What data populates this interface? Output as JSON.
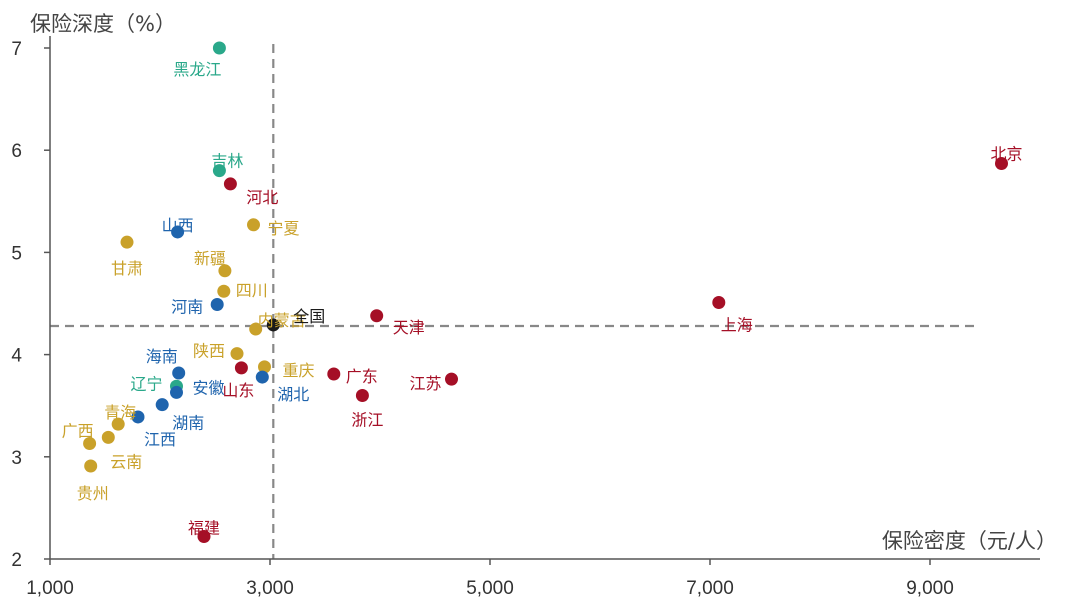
{
  "chart_data": {
    "type": "scatter",
    "title": "",
    "xlabel": "保险密度（元/人）",
    "ylabel": "保险深度（%）",
    "xlim": [
      1000,
      10000
    ],
    "ylim": [
      2,
      7
    ],
    "xticks": [
      1000,
      3000,
      5000,
      7000,
      9000
    ],
    "xtick_labels": [
      "1,000",
      "3,000",
      "5,000",
      "7,000",
      "9,000"
    ],
    "yticks": [
      2,
      3,
      4,
      5,
      6,
      7
    ],
    "ytick_labels": [
      "2",
      "3",
      "4",
      "5",
      "6",
      "7"
    ],
    "reference_lines": {
      "x": 3030,
      "y": 4.28
    },
    "grid": false,
    "legend": "none",
    "colors": {
      "teal": "#2aa88a",
      "red": "#a50f26",
      "gold": "#c9a12a",
      "blue": "#1f64ad",
      "black": "#1a1a1a"
    },
    "points": [
      {
        "label": "黑龙江",
        "x": 2540,
        "y": 7.0,
        "color": "teal",
        "dx": -22,
        "dy": 21
      },
      {
        "label": "吉林",
        "x": 2540,
        "y": 5.8,
        "color": "teal",
        "dx": 8,
        "dy": -10
      },
      {
        "label": "北京",
        "x": 9650,
        "y": 5.87,
        "color": "red",
        "dx": 5,
        "dy": -10
      },
      {
        "label": "河北",
        "x": 2640,
        "y": 5.67,
        "color": "red",
        "dx": 32,
        "dy": 13
      },
      {
        "label": "山西",
        "x": 2160,
        "y": 5.2,
        "color": "blue",
        "dx": 0,
        "dy": -7
      },
      {
        "label": "宁夏",
        "x": 2850,
        "y": 5.27,
        "color": "gold",
        "dx": 30,
        "dy": 3
      },
      {
        "label": "甘肃",
        "x": 1700,
        "y": 5.1,
        "color": "gold",
        "dx": 0,
        "dy": 26
      },
      {
        "label": "新疆",
        "x": 2590,
        "y": 4.82,
        "color": "gold",
        "dx": -15,
        "dy": -13
      },
      {
        "label": "四川",
        "x": 2580,
        "y": 4.62,
        "color": "gold",
        "dx": 28,
        "dy": -1
      },
      {
        "label": "河南",
        "x": 2520,
        "y": 4.49,
        "color": "blue",
        "dx": -30,
        "dy": 2
      },
      {
        "label": "内蒙古",
        "x": 2870,
        "y": 4.25,
        "color": "gold",
        "dx": 26,
        "dy": -9
      },
      {
        "label": "全国",
        "x": 3030,
        "y": 4.29,
        "color": "black",
        "dx": 36,
        "dy": -9
      },
      {
        "label": "天津",
        "x": 3970,
        "y": 4.38,
        "color": "red",
        "dx": 32,
        "dy": 11
      },
      {
        "label": "上海",
        "x": 7080,
        "y": 4.51,
        "color": "red",
        "dx": 18,
        "dy": 22
      },
      {
        "label": "陕西",
        "x": 2700,
        "y": 4.01,
        "color": "gold",
        "dx": -28,
        "dy": -3
      },
      {
        "label": "海南",
        "x": 2170,
        "y": 3.82,
        "color": "blue",
        "dx": -17,
        "dy": -17
      },
      {
        "label": "重庆",
        "x": 2950,
        "y": 3.88,
        "color": "gold",
        "dx": 34,
        "dy": 3
      },
      {
        "label": "山东",
        "x": 2740,
        "y": 3.87,
        "color": "red",
        "dx": -3,
        "dy": 22
      },
      {
        "label": "湖北",
        "x": 2930,
        "y": 3.78,
        "color": "blue",
        "dx": 31,
        "dy": 17
      },
      {
        "label": "广东",
        "x": 3580,
        "y": 3.81,
        "color": "red",
        "dx": 28,
        "dy": 2
      },
      {
        "label": "江苏",
        "x": 4650,
        "y": 3.76,
        "color": "red",
        "dx": -26,
        "dy": 4
      },
      {
        "label": "辽宁",
        "x": 2150,
        "y": 3.69,
        "color": "teal",
        "dx": -30,
        "dy": -3
      },
      {
        "label": "安徽",
        "x": 2150,
        "y": 3.63,
        "color": "blue",
        "dx": 32,
        "dy": -5
      },
      {
        "label": "浙江",
        "x": 3840,
        "y": 3.6,
        "color": "red",
        "dx": 5,
        "dy": 24
      },
      {
        "label": "湖南",
        "x": 2020,
        "y": 3.51,
        "color": "blue",
        "dx": 26,
        "dy": 18
      },
      {
        "label": "青海",
        "x": 1620,
        "y": 3.32,
        "color": "gold",
        "dx": 2,
        "dy": -12
      },
      {
        "label": "江西",
        "x": 1800,
        "y": 3.39,
        "color": "blue",
        "dx": 22,
        "dy": 22
      },
      {
        "label": "广西",
        "x": 1360,
        "y": 3.13,
        "color": "gold",
        "dx": -12,
        "dy": -13
      },
      {
        "label": "云南",
        "x": 1530,
        "y": 3.19,
        "color": "gold",
        "dx": 18,
        "dy": 24
      },
      {
        "label": "贵州",
        "x": 1370,
        "y": 2.91,
        "color": "gold",
        "dx": 2,
        "dy": 27
      },
      {
        "label": "福建",
        "x": 2400,
        "y": 2.22,
        "color": "red",
        "dx": 0,
        "dy": -9
      }
    ]
  }
}
